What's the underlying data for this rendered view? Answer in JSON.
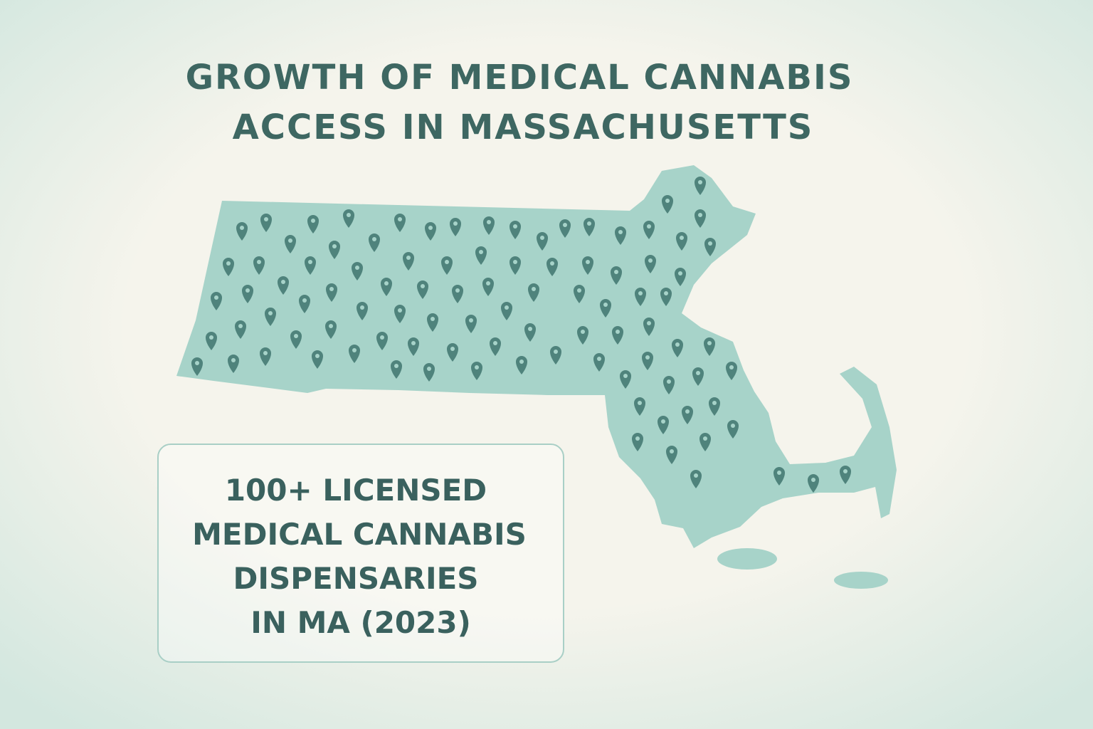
{
  "title": {
    "lines": [
      "GROWTH OF MEDICAL CANNABIS",
      "ACCESS IN MASSACHUSETTS"
    ]
  },
  "callout": {
    "lines": [
      "100+ LICENSED",
      "MEDICAL CANNABIS",
      "DISPENSARIES",
      "IN MA (2023)"
    ]
  }
}
